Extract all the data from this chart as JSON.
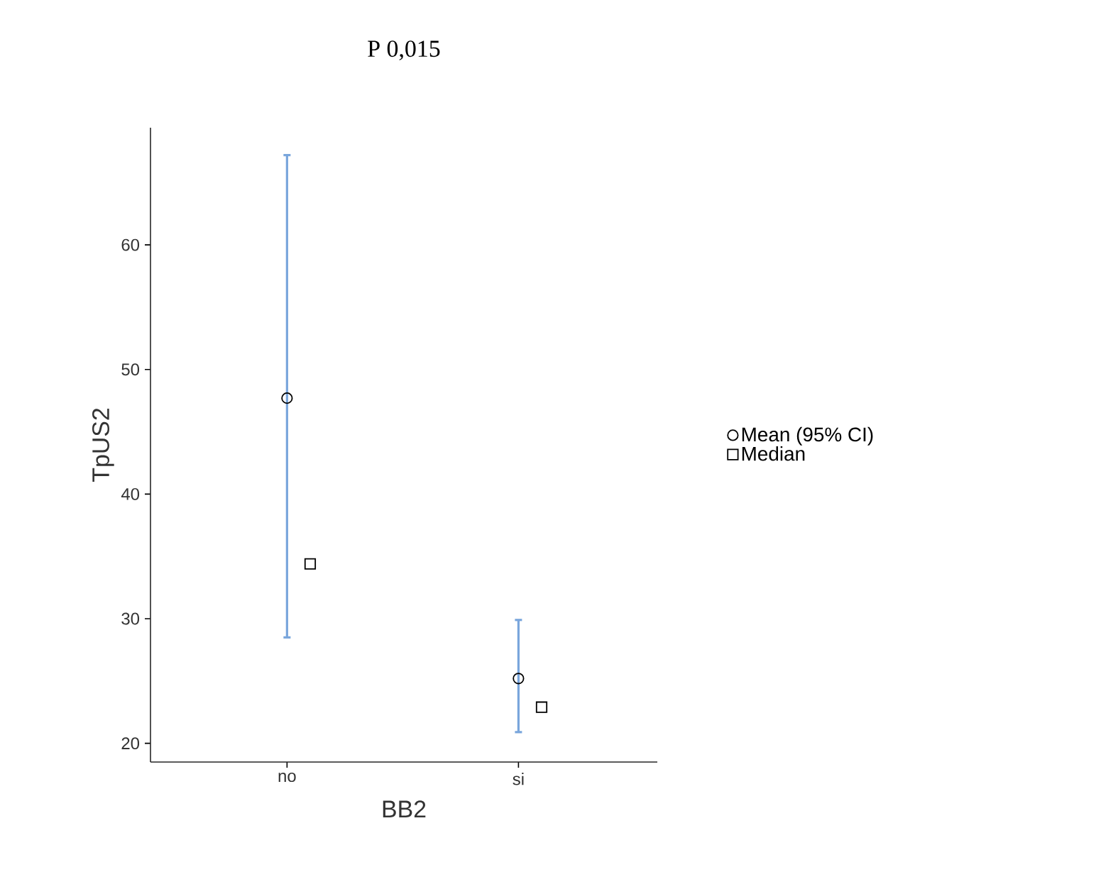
{
  "chart_data": {
    "type": "scatter",
    "title": "P 0,015",
    "xlabel": "BB2",
    "ylabel": "TpUS2",
    "categories": [
      "no",
      "si"
    ],
    "series": [
      {
        "name": "Mean (95% CI)",
        "color": "#000000",
        "marker": "circle",
        "values": [
          47.7,
          25.2
        ],
        "errors": [
          [
            28.5,
            67.2
          ],
          [
            20.9,
            29.9
          ]
        ]
      },
      {
        "name": "Median",
        "color": "#000000",
        "marker": "square",
        "values": [
          34.4,
          22.9
        ]
      }
    ],
    "ylim": [
      18.5,
      69.4
    ],
    "yticks": [
      20,
      30,
      40,
      50,
      60
    ],
    "legend": "right",
    "grid": false
  }
}
